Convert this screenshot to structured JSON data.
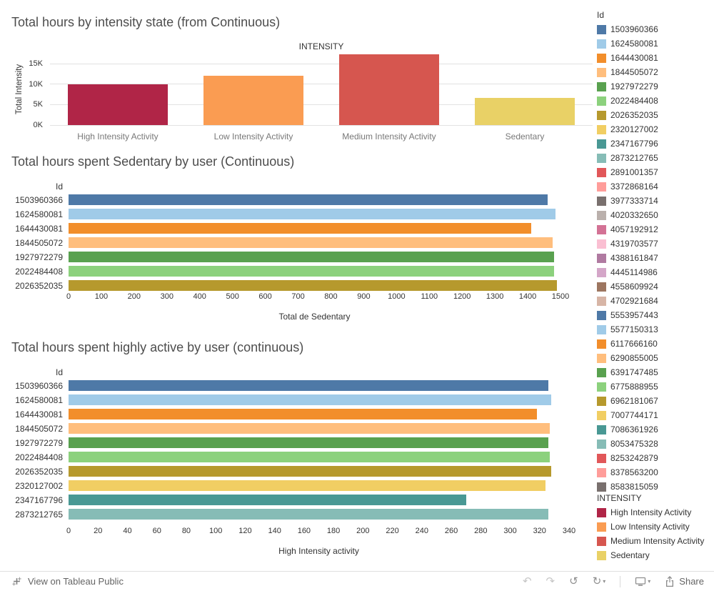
{
  "chart_data": [
    {
      "type": "bar",
      "title": "Total hours by intensity state (from Continuous)",
      "column_header": "INTENSITY",
      "ylabel": "Total Intensity",
      "categories": [
        "High Intensity Activity",
        "Low Intensity Activity",
        "Medium Intensity Activity",
        "Sedentary"
      ],
      "values": [
        10000,
        12000,
        17300,
        6600
      ],
      "colors": [
        "#b02547",
        "#fa9c52",
        "#d6564f",
        "#e9d166"
      ],
      "yticks": [
        "0K",
        "5K",
        "10K",
        "15K"
      ],
      "ytick_values": [
        0,
        5000,
        10000,
        15000
      ],
      "ylim": [
        0,
        17500
      ],
      "grid": true
    },
    {
      "type": "bar",
      "orientation": "horizontal",
      "title": "Total hours spent Sedentary by user (Continuous)",
      "row_header": "Id",
      "categories": [
        "1503960366",
        "1624580081",
        "1644430081",
        "1844505072",
        "1927972279",
        "2022484408",
        "2026352035"
      ],
      "values": [
        1460,
        1485,
        1410,
        1475,
        1480,
        1480,
        1490
      ],
      "xlabel": "Total de Sedentary",
      "xticks": [
        0,
        100,
        200,
        300,
        400,
        500,
        600,
        700,
        800,
        900,
        1000,
        1100,
        1200,
        1300,
        1400,
        1500
      ],
      "xlim": [
        0,
        1500
      ],
      "grid": false
    },
    {
      "type": "bar",
      "orientation": "horizontal",
      "title": "Total hours spent highly active by user (continuous)",
      "row_header": "Id",
      "categories": [
        "1503960366",
        "1624580081",
        "1644430081",
        "1844505072",
        "1927972279",
        "2022484408",
        "2026352035",
        "2320127002",
        "2347167796",
        "2873212765"
      ],
      "values": [
        326,
        328,
        318,
        327,
        326,
        327,
        328,
        324,
        270,
        326
      ],
      "xlabel": "High Intensity activity",
      "xticks": [
        0,
        20,
        40,
        60,
        80,
        100,
        120,
        140,
        160,
        180,
        200,
        220,
        240,
        260,
        280,
        300,
        320,
        340
      ],
      "xlim": [
        0,
        340
      ],
      "grid": false
    }
  ],
  "legend": {
    "id_title": "Id",
    "id_items": [
      {
        "label": "1503960366",
        "color": "#4e79a7"
      },
      {
        "label": "1624580081",
        "color": "#a0cbe8"
      },
      {
        "label": "1644430081",
        "color": "#f28e2b"
      },
      {
        "label": "1844505072",
        "color": "#ffbe7d"
      },
      {
        "label": "1927972279",
        "color": "#59a14f"
      },
      {
        "label": "2022484408",
        "color": "#8cd17d"
      },
      {
        "label": "2026352035",
        "color": "#b6992d"
      },
      {
        "label": "2320127002",
        "color": "#f1ce63"
      },
      {
        "label": "2347167796",
        "color": "#499894"
      },
      {
        "label": "2873212765",
        "color": "#86bcb6"
      },
      {
        "label": "2891001357",
        "color": "#e15759"
      },
      {
        "label": "3372868164",
        "color": "#ff9d9a"
      },
      {
        "label": "3977333714",
        "color": "#79706e"
      },
      {
        "label": "4020332650",
        "color": "#bab0ac"
      },
      {
        "label": "4057192912",
        "color": "#d37295"
      },
      {
        "label": "4319703577",
        "color": "#fabfd2"
      },
      {
        "label": "4388161847",
        "color": "#b07aa1"
      },
      {
        "label": "4445114986",
        "color": "#d4a6c8"
      },
      {
        "label": "4558609924",
        "color": "#9d7660"
      },
      {
        "label": "4702921684",
        "color": "#d7b5a6"
      },
      {
        "label": "5553957443",
        "color": "#4e79a7"
      },
      {
        "label": "5577150313",
        "color": "#a0cbe8"
      },
      {
        "label": "6117666160",
        "color": "#f28e2b"
      },
      {
        "label": "6290855005",
        "color": "#ffbe7d"
      },
      {
        "label": "6391747485",
        "color": "#59a14f"
      },
      {
        "label": "6775888955",
        "color": "#8cd17d"
      },
      {
        "label": "6962181067",
        "color": "#b6992d"
      },
      {
        "label": "7007744171",
        "color": "#f1ce63"
      },
      {
        "label": "7086361926",
        "color": "#499894"
      },
      {
        "label": "8053475328",
        "color": "#86bcb6"
      },
      {
        "label": "8253242879",
        "color": "#e15759"
      },
      {
        "label": "8378563200",
        "color": "#ff9d9a"
      },
      {
        "label": "8583815059",
        "color": "#79706e"
      }
    ],
    "intensity_title": "INTENSITY",
    "intensity_items": [
      {
        "label": "High Intensity Activity",
        "color": "#b02547"
      },
      {
        "label": "Low Intensity Activity",
        "color": "#fa9c52"
      },
      {
        "label": "Medium Intensity Activity",
        "color": "#d6564f"
      },
      {
        "label": "Sedentary",
        "color": "#e9d166"
      }
    ]
  },
  "toolbar": {
    "view_label": "View on Tableau Public",
    "share_label": "Share",
    "icons": {
      "undo": "↶",
      "redo": "↷",
      "reset": "↺",
      "refresh": "↻",
      "caret": "▾"
    }
  }
}
